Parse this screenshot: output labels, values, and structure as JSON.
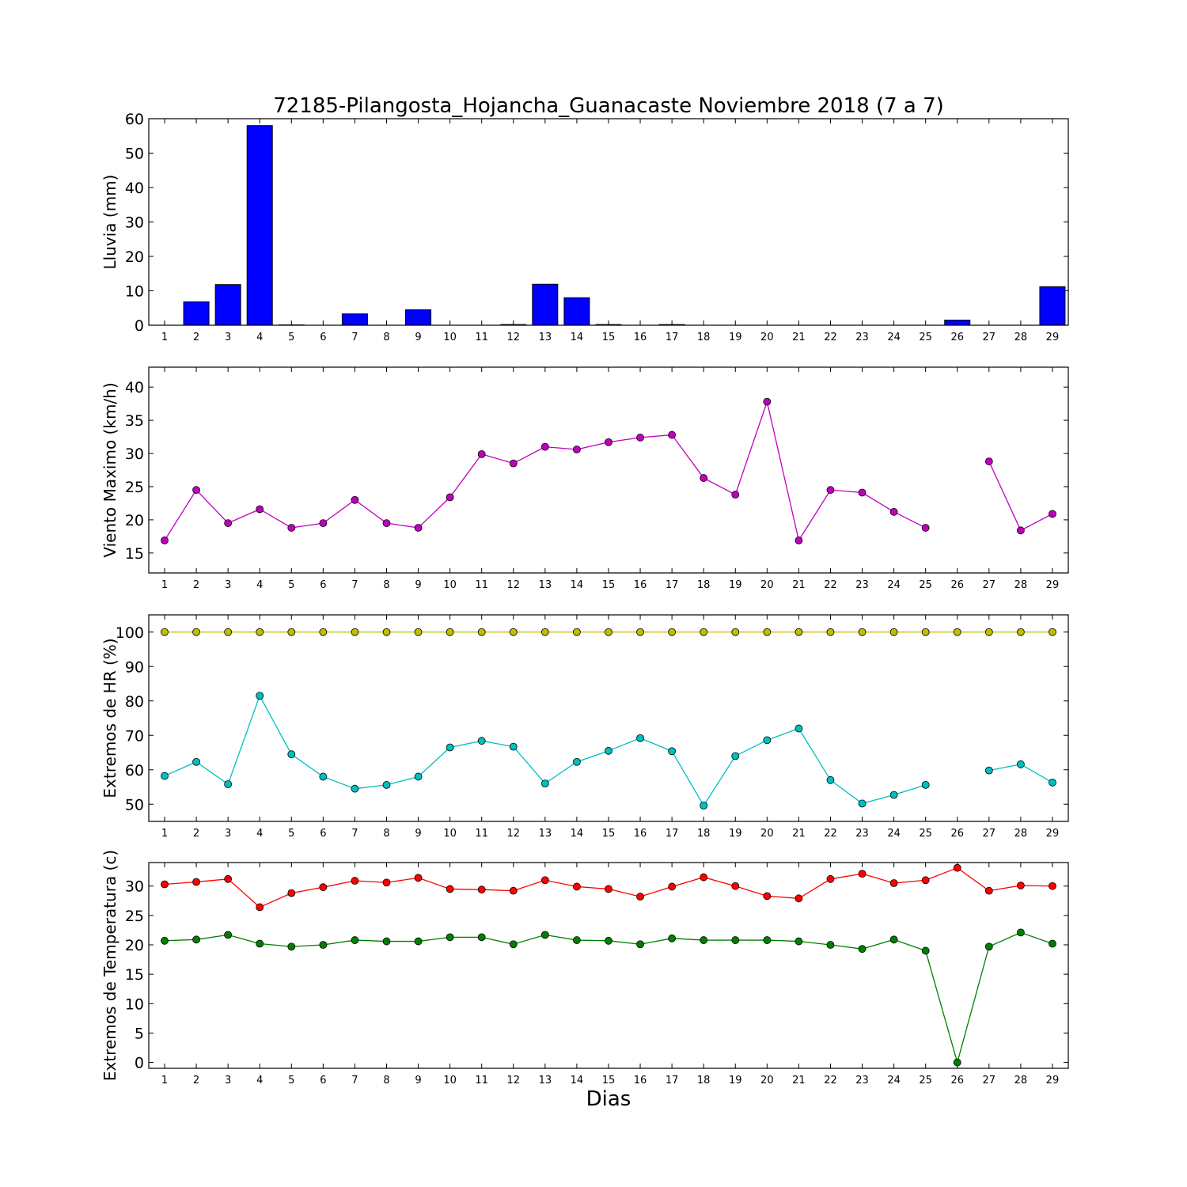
{
  "title": "72185-Pilangosta_Hojancha_Guanacaste Noviembre 2018  (7 a 7)",
  "xlabel": "Dias",
  "chart_data": [
    {
      "type": "bar",
      "ylabel": "Lluvia (mm)",
      "ylim": [
        0,
        60
      ],
      "yticks": [
        0,
        10,
        20,
        30,
        40,
        50,
        60
      ],
      "grid": false,
      "categories": [
        1,
        2,
        3,
        4,
        5,
        6,
        7,
        8,
        9,
        10,
        11,
        12,
        13,
        14,
        15,
        16,
        17,
        18,
        19,
        20,
        21,
        22,
        23,
        24,
        25,
        26,
        27,
        28,
        29
      ],
      "series": [
        {
          "color": "#0000ff",
          "values": [
            0,
            6.8,
            11.8,
            58,
            0.1,
            0,
            3.3,
            0,
            4.5,
            0,
            0,
            0.2,
            11.9,
            8,
            0.2,
            0,
            0.2,
            0,
            0,
            0,
            0,
            0,
            0,
            0,
            0,
            1.5,
            0,
            0,
            11.2
          ]
        }
      ]
    },
    {
      "type": "line",
      "ylabel": "Viento Maximo (km/h)",
      "ylim": [
        12,
        43
      ],
      "yticks": [
        15,
        20,
        25,
        30,
        35,
        40
      ],
      "grid": false,
      "x": [
        1,
        2,
        3,
        4,
        5,
        6,
        7,
        8,
        9,
        10,
        11,
        12,
        13,
        14,
        15,
        16,
        17,
        18,
        19,
        20,
        21,
        22,
        23,
        24,
        25,
        26,
        27,
        28,
        29
      ],
      "series": [
        {
          "color": "#bf00bf",
          "values": [
            16.9,
            24.5,
            19.5,
            21.6,
            18.8,
            19.5,
            23.0,
            19.5,
            18.8,
            23.4,
            29.9,
            28.5,
            31.0,
            30.6,
            31.7,
            32.4,
            32.8,
            26.3,
            23.8,
            37.8,
            16.9,
            24.5,
            24.1,
            21.2,
            18.8,
            null,
            28.8,
            18.4,
            20.9
          ]
        }
      ]
    },
    {
      "type": "line",
      "ylabel": "Extremos de HR (%)",
      "ylim": [
        45,
        105
      ],
      "yticks": [
        50,
        60,
        70,
        80,
        90,
        100
      ],
      "grid": false,
      "x": [
        1,
        2,
        3,
        4,
        5,
        6,
        7,
        8,
        9,
        10,
        11,
        12,
        13,
        14,
        15,
        16,
        17,
        18,
        19,
        20,
        21,
        22,
        23,
        24,
        25,
        26,
        27,
        28,
        29
      ],
      "series": [
        {
          "color": "#bfbf00",
          "values": [
            100,
            100,
            100,
            100,
            100,
            100,
            100,
            100,
            100,
            100,
            100,
            100,
            100,
            100,
            100,
            100,
            100,
            100,
            100,
            100,
            100,
            100,
            100,
            100,
            100,
            100,
            100,
            100,
            100
          ]
        },
        {
          "color": "#00bfbf",
          "values": [
            58.2,
            62.3,
            55.8,
            81.5,
            64.5,
            58.0,
            54.5,
            55.6,
            58.0,
            66.5,
            68.4,
            66.7,
            56.0,
            62.3,
            65.5,
            69.2,
            65.4,
            49.6,
            64.0,
            68.6,
            72.0,
            57.0,
            50.2,
            52.7,
            55.6,
            null,
            59.8,
            61.6,
            56.3
          ]
        }
      ]
    },
    {
      "type": "line",
      "ylabel": "Extremos de Temperatura (c)",
      "ylim": [
        -1,
        34
      ],
      "yticks": [
        0,
        5,
        10,
        15,
        20,
        25,
        30
      ],
      "grid": false,
      "x": [
        1,
        2,
        3,
        4,
        5,
        6,
        7,
        8,
        9,
        10,
        11,
        12,
        13,
        14,
        15,
        16,
        17,
        18,
        19,
        20,
        21,
        22,
        23,
        24,
        25,
        26,
        27,
        28,
        29
      ],
      "series": [
        {
          "color": "#ff0000",
          "values": [
            30.3,
            30.7,
            31.2,
            26.4,
            28.8,
            29.8,
            30.9,
            30.6,
            31.4,
            29.5,
            29.4,
            29.2,
            31.0,
            29.9,
            29.5,
            28.2,
            29.9,
            31.5,
            30.0,
            28.3,
            27.9,
            31.2,
            32.1,
            30.5,
            31.0,
            33.1,
            29.2,
            30.1,
            30.0
          ]
        },
        {
          "color": "#008000",
          "values": [
            20.7,
            20.9,
            21.7,
            20.2,
            19.7,
            20.0,
            20.8,
            20.6,
            20.6,
            21.3,
            21.3,
            20.1,
            21.7,
            20.8,
            20.7,
            20.1,
            21.1,
            20.8,
            20.8,
            20.8,
            20.6,
            20.0,
            19.3,
            20.9,
            19.0,
            0.0,
            19.7,
            22.1,
            20.2
          ]
        }
      ]
    }
  ]
}
